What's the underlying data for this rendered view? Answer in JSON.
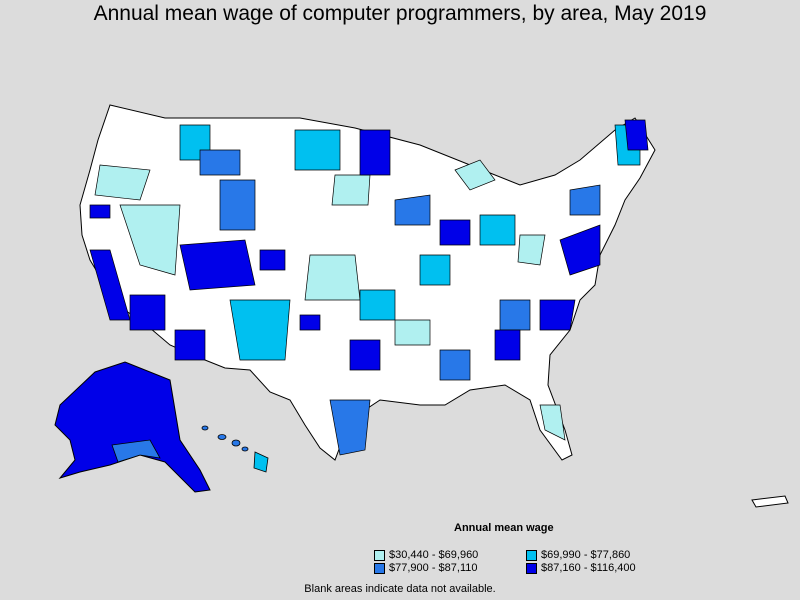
{
  "title": "Annual mean wage of computer programmers, by area, May 2019",
  "legend": {
    "title": "Annual mean wage",
    "items": [
      {
        "label": "$30,440 - $69,960",
        "color": "#b0f0f0"
      },
      {
        "label": "$69,990 - $77,860",
        "color": "#00c0f0"
      },
      {
        "label": "$77,900 - $87,110",
        "color": "#2878e8"
      },
      {
        "label": "$87,160 - $116,400",
        "color": "#0000e8"
      }
    ]
  },
  "note": "Blank areas indicate data not available.",
  "colors": {
    "background": "#dcdcdc",
    "no_data": "#ffffff",
    "border": "#000000"
  }
}
